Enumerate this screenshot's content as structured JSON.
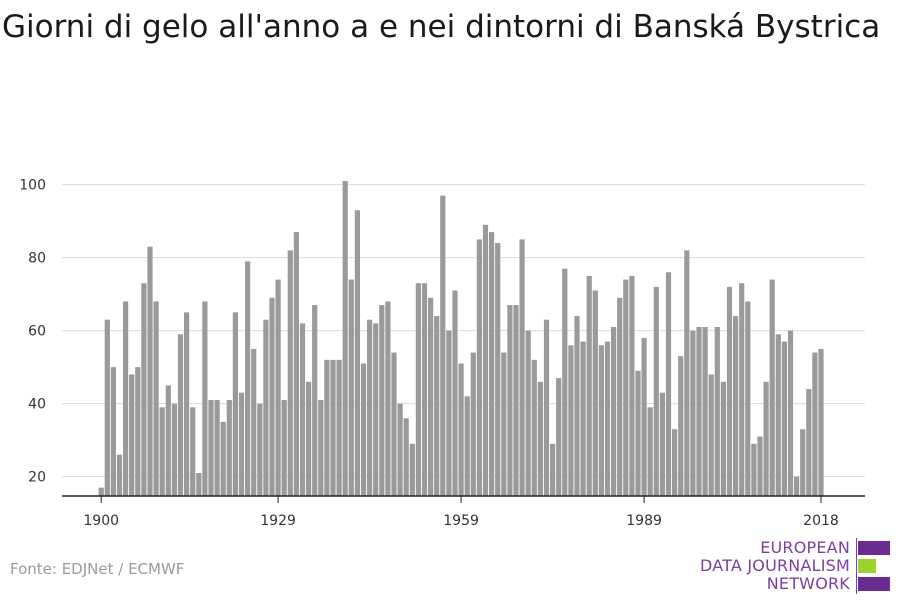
{
  "title": "Giorni di gelo all'anno a e nei dintorni di Banská Bystrica",
  "source": "Fonte: EDJNet / ECMWF",
  "logo": {
    "line1": "EUROPEAN",
    "line2": "DATA JOURNALISM",
    "line3": "NETWORK",
    "purple": "#6a2c91",
    "green": "#9bd22f"
  },
  "chart_data": {
    "type": "bar",
    "bar_color": "#9a9a9a",
    "grid": true,
    "xlabel": "",
    "ylabel": "",
    "ylim": [
      15,
      102
    ],
    "yticks": [
      20,
      40,
      60,
      80,
      100
    ],
    "xticks": [
      1900,
      1929,
      1959,
      1989,
      2018
    ],
    "x": [
      1900,
      1901,
      1902,
      1903,
      1904,
      1905,
      1906,
      1907,
      1908,
      1909,
      1910,
      1911,
      1912,
      1913,
      1914,
      1915,
      1916,
      1917,
      1918,
      1919,
      1920,
      1921,
      1922,
      1923,
      1924,
      1925,
      1926,
      1927,
      1928,
      1929,
      1930,
      1931,
      1932,
      1933,
      1934,
      1935,
      1936,
      1937,
      1938,
      1939,
      1940,
      1941,
      1942,
      1943,
      1944,
      1945,
      1946,
      1947,
      1948,
      1949,
      1950,
      1951,
      1952,
      1953,
      1954,
      1955,
      1956,
      1957,
      1958,
      1959,
      1960,
      1961,
      1962,
      1963,
      1964,
      1965,
      1966,
      1967,
      1968,
      1969,
      1970,
      1971,
      1972,
      1973,
      1974,
      1975,
      1976,
      1977,
      1978,
      1979,
      1980,
      1981,
      1982,
      1983,
      1984,
      1985,
      1986,
      1987,
      1988,
      1989,
      1990,
      1991,
      1992,
      1993,
      1994,
      1995,
      1996,
      1997,
      1998,
      1999,
      2000,
      2001,
      2002,
      2003,
      2004,
      2005,
      2006,
      2007,
      2008,
      2009,
      2010,
      2011,
      2012,
      2013,
      2014,
      2015,
      2016,
      2017,
      2018
    ],
    "values": [
      17,
      63,
      50,
      26,
      68,
      48,
      50,
      73,
      83,
      68,
      39,
      45,
      40,
      59,
      65,
      39,
      21,
      68,
      41,
      41,
      35,
      41,
      65,
      43,
      79,
      55,
      40,
      63,
      69,
      74,
      41,
      82,
      87,
      62,
      46,
      67,
      41,
      52,
      52,
      52,
      101,
      74,
      93,
      51,
      63,
      62,
      67,
      68,
      54,
      40,
      36,
      29,
      73,
      73,
      69,
      64,
      97,
      60,
      71,
      51,
      42,
      54,
      85,
      89,
      87,
      84,
      54,
      67,
      67,
      85,
      60,
      52,
      46,
      63,
      29,
      47,
      77,
      56,
      64,
      57,
      75,
      71,
      56,
      57,
      61,
      69,
      74,
      75,
      49,
      58,
      39,
      72,
      43,
      76,
      33,
      53,
      82,
      60,
      61,
      61,
      48,
      61,
      46,
      72,
      64,
      73,
      68,
      29,
      31,
      46,
      74,
      59,
      57,
      60,
      20,
      33,
      44,
      54,
      55
    ]
  }
}
